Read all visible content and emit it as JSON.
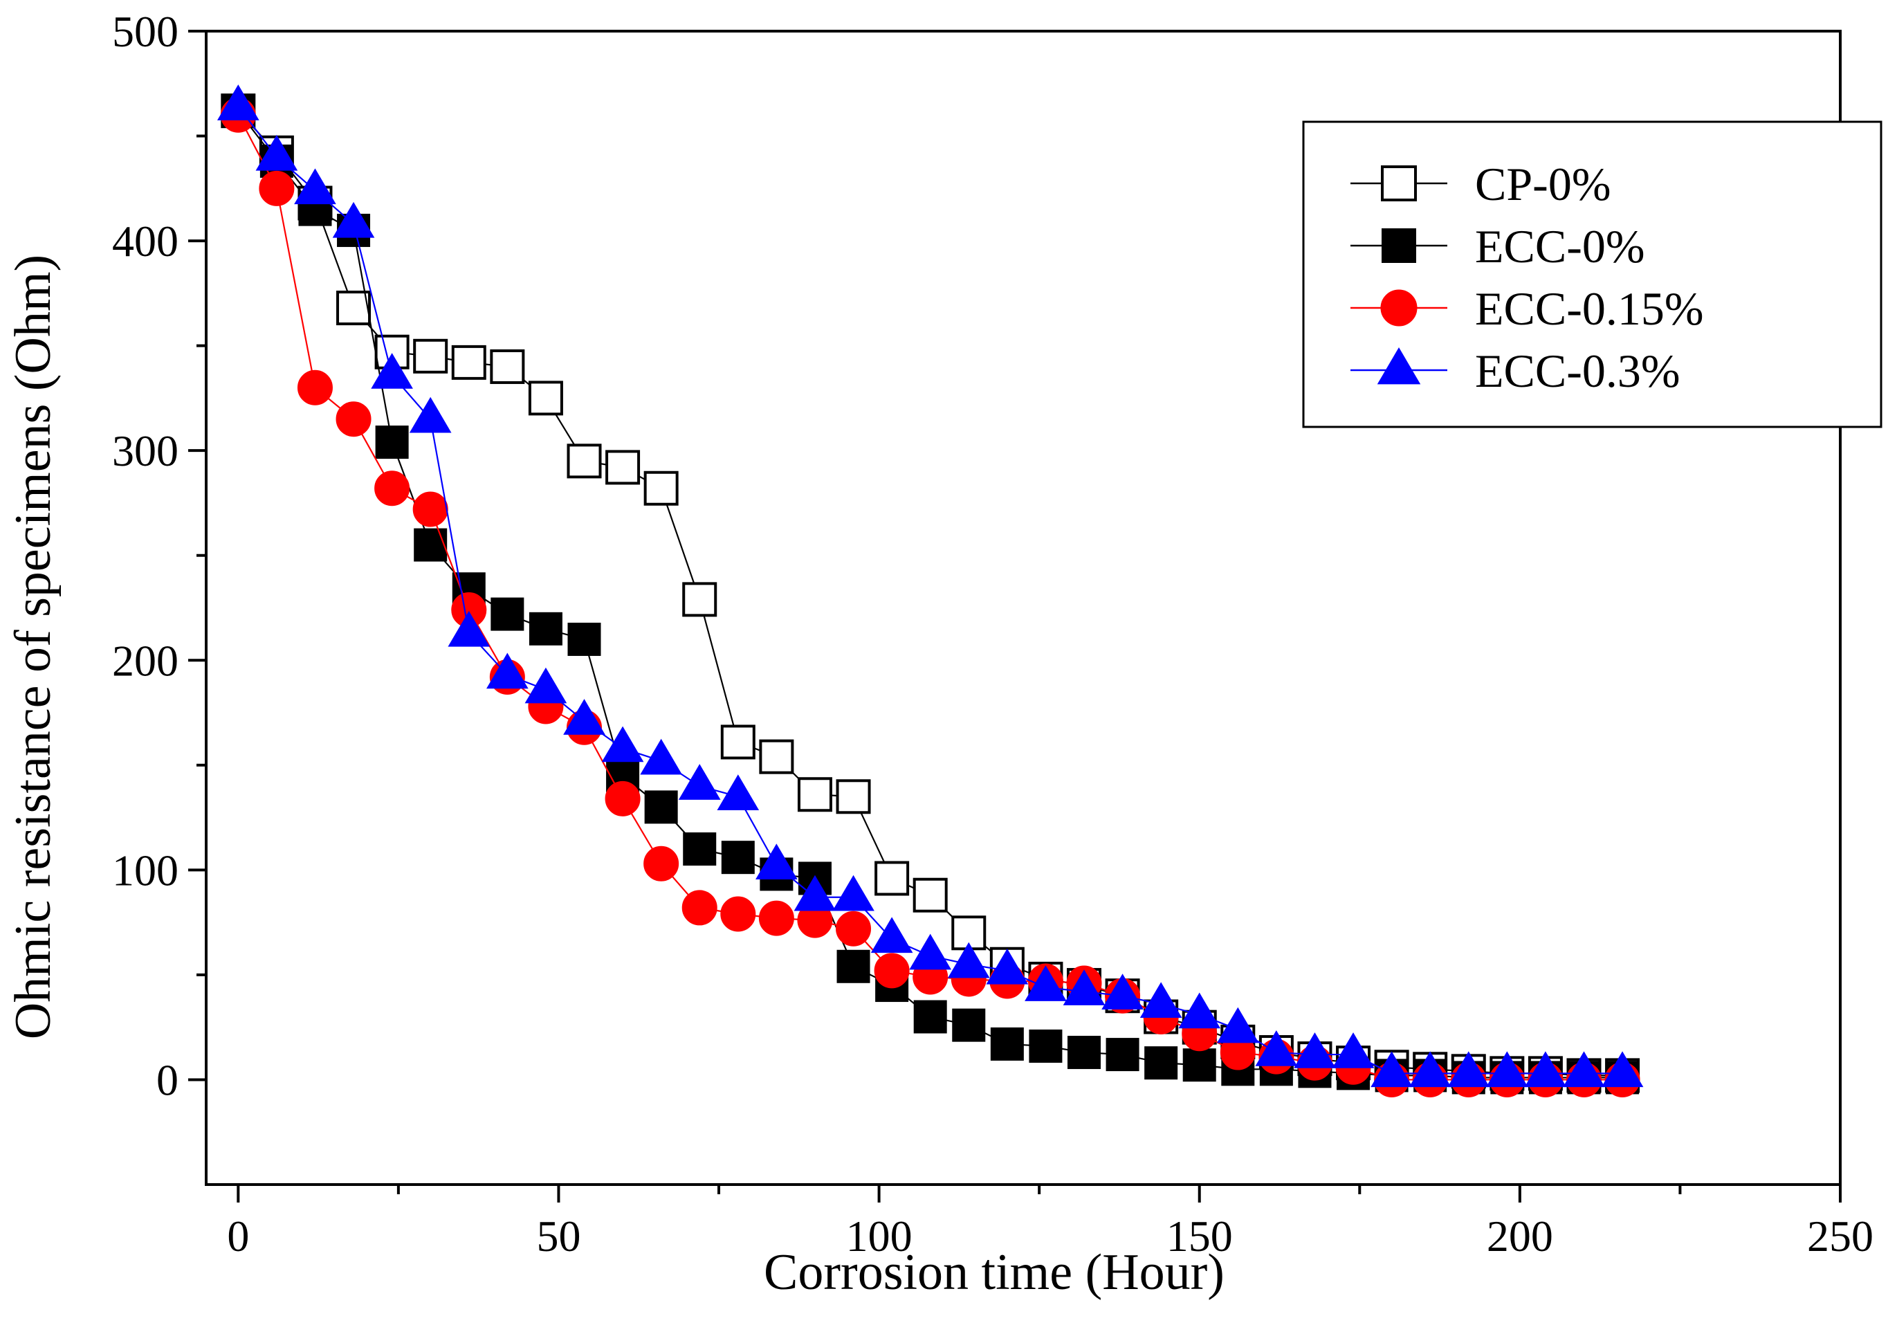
{
  "chart_data": {
    "type": "line",
    "title": "",
    "xlabel": "Corrosion time (Hour)",
    "ylabel": "Ohmic resistance of specimens (Ohm)",
    "xlim": [
      -5,
      250
    ],
    "ylim": [
      -50,
      500
    ],
    "xticks": [
      0,
      50,
      100,
      150,
      200,
      250
    ],
    "yticks": [
      0,
      100,
      200,
      300,
      400,
      500
    ],
    "xtick_labels": [
      "0",
      "50",
      "100",
      "150",
      "200",
      "250"
    ],
    "ytick_labels": [
      "0",
      "100",
      "200",
      "300",
      "400",
      "500"
    ],
    "legend_position": "top-right",
    "series": [
      {
        "name": "CP-0%",
        "marker": "square-open",
        "color": "#000000",
        "x": [
          0,
          6,
          12,
          18,
          24,
          30,
          36,
          42,
          48,
          54,
          60,
          66,
          72,
          78,
          84,
          90,
          96,
          102,
          108,
          114,
          120,
          126,
          132,
          138,
          144,
          150,
          156,
          162,
          168,
          174,
          180,
          186,
          192,
          198,
          204,
          210,
          216
        ],
        "values": [
          462,
          442,
          418,
          368,
          347,
          345,
          342,
          340,
          325,
          295,
          292,
          282,
          229,
          161,
          154,
          136,
          135,
          96,
          88,
          70,
          55,
          48,
          45,
          40,
          30,
          25,
          18,
          13,
          10,
          8,
          6,
          5,
          4,
          3,
          3,
          2,
          2
        ]
      },
      {
        "name": "ECC-0%",
        "marker": "square-filled",
        "color": "#000000",
        "x": [
          0,
          6,
          12,
          18,
          24,
          30,
          36,
          42,
          48,
          54,
          60,
          66,
          72,
          78,
          84,
          90,
          96,
          102,
          108,
          114,
          120,
          126,
          132,
          138,
          144,
          150,
          156,
          162,
          168,
          174,
          180,
          186,
          192,
          198,
          204,
          210,
          216
        ],
        "values": [
          462,
          438,
          415,
          405,
          304,
          255,
          234,
          222,
          215,
          210,
          145,
          130,
          110,
          106,
          98,
          96,
          54,
          45,
          30,
          26,
          17,
          16,
          13,
          12,
          8,
          7,
          5,
          5,
          4,
          3,
          2,
          2,
          1,
          1,
          1,
          1,
          1
        ]
      },
      {
        "name": "ECC-0.15%",
        "marker": "circle-filled",
        "color": "#ff0000",
        "x": [
          0,
          6,
          12,
          18,
          24,
          30,
          36,
          42,
          48,
          54,
          60,
          66,
          72,
          78,
          84,
          90,
          96,
          102,
          108,
          114,
          120,
          126,
          132,
          138,
          144,
          150,
          156,
          162,
          168,
          174,
          180,
          186,
          192,
          198,
          204,
          210,
          216
        ],
        "values": [
          460,
          425,
          330,
          315,
          282,
          272,
          224,
          192,
          178,
          168,
          134,
          103,
          82,
          79,
          77,
          76,
          72,
          52,
          49,
          48,
          47,
          47,
          46,
          40,
          30,
          22,
          13,
          11,
          8,
          6,
          0,
          0,
          0,
          0,
          0,
          0,
          0
        ]
      },
      {
        "name": "ECC-0.3%",
        "marker": "triangle-filled",
        "color": "#0000ff",
        "x": [
          0,
          6,
          12,
          18,
          24,
          30,
          36,
          42,
          48,
          54,
          60,
          66,
          72,
          78,
          84,
          90,
          96,
          102,
          108,
          114,
          120,
          126,
          132,
          138,
          144,
          150,
          156,
          162,
          168,
          174,
          180,
          186,
          192,
          198,
          204,
          210,
          216
        ],
        "values": [
          464,
          440,
          424,
          408,
          336,
          315,
          213,
          193,
          186,
          171,
          158,
          152,
          140,
          135,
          102,
          87,
          87,
          67,
          59,
          55,
          52,
          44,
          42,
          40,
          36,
          31,
          24,
          13,
          12,
          12,
          3,
          3,
          3,
          3,
          3,
          3,
          3
        ]
      }
    ]
  }
}
